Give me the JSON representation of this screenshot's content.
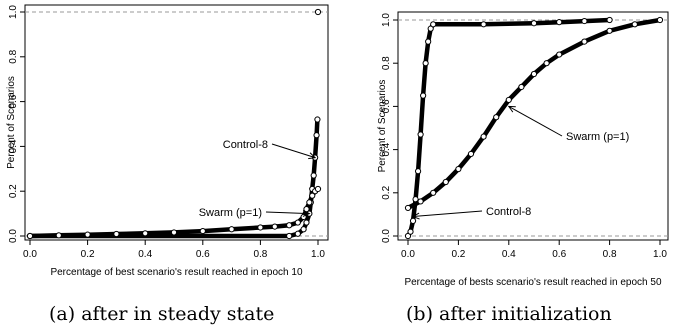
{
  "chart_data": [
    {
      "type": "line",
      "panel": "a",
      "caption": "(a) after in steady state",
      "xlabel": "Percentage of best scenario's result reached in epoch 10",
      "ylabel": "Percent of Scenarios",
      "xlim": [
        0.0,
        1.0
      ],
      "ylim": [
        0.0,
        1.0
      ],
      "x_ticks": [
        "0.0",
        "0.2",
        "0.4",
        "0.6",
        "0.8",
        "1.0"
      ],
      "y_ticks": [
        "0.0",
        "0.2",
        "0.4",
        "0.6",
        "0.8",
        "1.0"
      ],
      "reference_lines": [
        0.0,
        1.0
      ],
      "grid": false,
      "annotations": [
        {
          "text": "Control-8",
          "target": [
            0.99,
            0.35
          ]
        },
        {
          "text": "Swarm (p=1)",
          "target": [
            0.97,
            0.1
          ]
        }
      ],
      "series": [
        {
          "name": "Control-8",
          "x": [
            0.0,
            0.9,
            0.93,
            0.95,
            0.96,
            0.97,
            0.975,
            0.98,
            0.985,
            0.99,
            0.995,
            0.998
          ],
          "y": [
            0.0,
            0.0,
            0.01,
            0.03,
            0.06,
            0.1,
            0.15,
            0.21,
            0.27,
            0.35,
            0.45,
            0.52
          ]
        },
        {
          "name": "Swarm (p=1)",
          "x": [
            0.0,
            0.1,
            0.2,
            0.3,
            0.4,
            0.5,
            0.6,
            0.7,
            0.8,
            0.85,
            0.9,
            0.93,
            0.95,
            0.96,
            0.97,
            0.98,
            0.99,
            1.0
          ],
          "y": [
            0.0,
            0.003,
            0.006,
            0.009,
            0.012,
            0.016,
            0.022,
            0.03,
            0.038,
            0.042,
            0.048,
            0.06,
            0.085,
            0.12,
            0.15,
            0.18,
            0.2,
            0.21
          ]
        },
        {
          "name": "marker",
          "x": [
            1.0
          ],
          "y": [
            1.0
          ]
        }
      ]
    },
    {
      "type": "line",
      "panel": "b",
      "caption": "(b) after initialization",
      "xlabel": "Percentage of bests scenario's result reached in epoch 50",
      "ylabel": "Percent of Scenarios",
      "xlim": [
        0.0,
        1.0
      ],
      "ylim": [
        0.0,
        1.0
      ],
      "x_ticks": [
        "0.0",
        "0.2",
        "0.4",
        "0.6",
        "0.8",
        "1.0"
      ],
      "y_ticks": [
        "0.0",
        "0.2",
        "0.4",
        "0.6",
        "0.8",
        "1.0"
      ],
      "reference_lines": [
        0.0,
        1.0
      ],
      "grid": false,
      "annotations": [
        {
          "text": "Swarm (p=1)",
          "target": [
            0.4,
            0.6
          ]
        },
        {
          "text": "Control-8",
          "target": [
            0.02,
            0.09
          ]
        }
      ],
      "series": [
        {
          "name": "Control-8",
          "x": [
            0.0,
            0.01,
            0.02,
            0.03,
            0.04,
            0.05,
            0.06,
            0.07,
            0.08,
            0.09,
            0.1,
            0.3,
            0.5,
            0.6,
            0.7,
            0.8
          ],
          "y": [
            0.0,
            0.02,
            0.07,
            0.17,
            0.3,
            0.47,
            0.65,
            0.8,
            0.9,
            0.96,
            0.98,
            0.98,
            0.985,
            0.99,
            0.995,
            1.0
          ]
        },
        {
          "name": "Swarm (p=1)",
          "x": [
            0.0,
            0.05,
            0.1,
            0.15,
            0.2,
            0.25,
            0.3,
            0.35,
            0.4,
            0.45,
            0.5,
            0.55,
            0.6,
            0.7,
            0.8,
            0.9,
            1.0
          ],
          "y": [
            0.13,
            0.16,
            0.2,
            0.25,
            0.31,
            0.38,
            0.46,
            0.55,
            0.63,
            0.69,
            0.75,
            0.8,
            0.84,
            0.9,
            0.95,
            0.98,
            1.0
          ]
        }
      ]
    }
  ]
}
